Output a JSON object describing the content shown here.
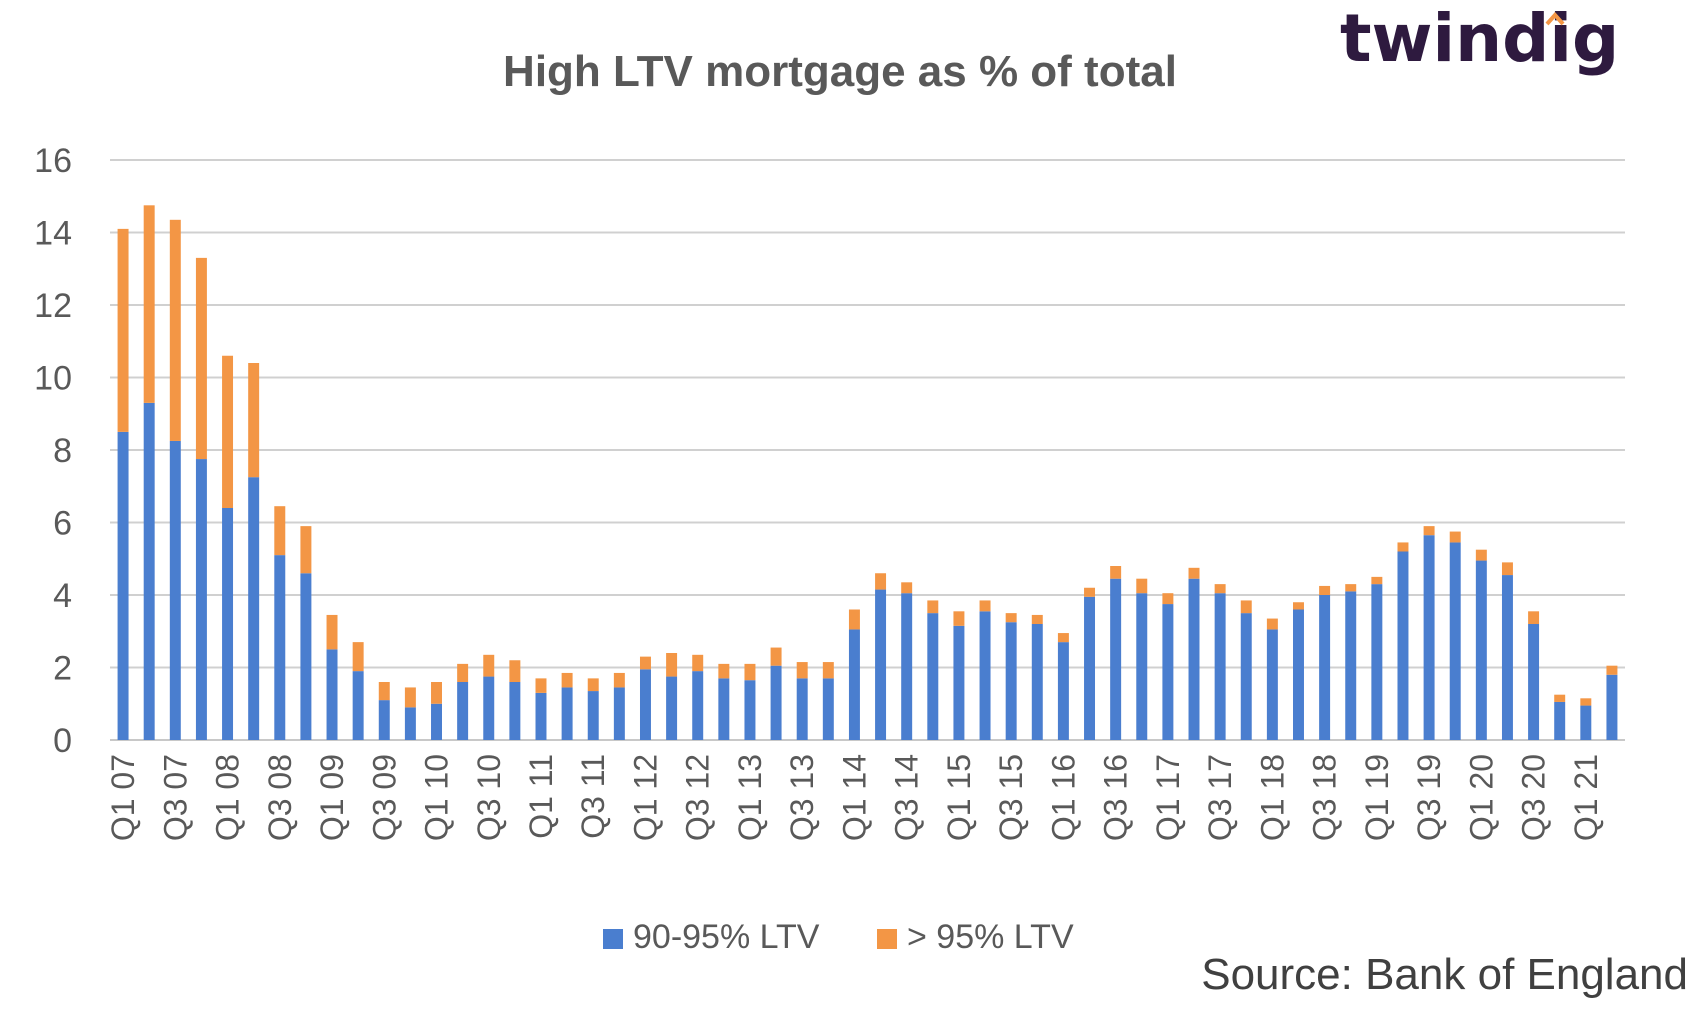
{
  "logo_text": "twindig",
  "source_text": "Source: Bank of England",
  "colors": {
    "series_a": "#4a7ecf",
    "series_b": "#f39645",
    "grid": "#d0d0d0",
    "text": "#595959",
    "logo": "#2e1a3f",
    "logo_accent": "#f39645"
  },
  "chart_data": {
    "type": "bar",
    "stacked": true,
    "title": "High LTV mortgage as % of total",
    "xlabel": "",
    "ylabel": "",
    "ylim": [
      0,
      16
    ],
    "yticks": [
      "0",
      "2",
      "4",
      "6",
      "8",
      "10",
      "12",
      "14",
      "16"
    ],
    "grid": true,
    "legend_position": "bottom",
    "categories": [
      "Q1 07",
      "Q2 07",
      "Q3 07",
      "Q4 07",
      "Q1 08",
      "Q2 08",
      "Q3 08",
      "Q4 08",
      "Q1 09",
      "Q2 09",
      "Q3 09",
      "Q4 09",
      "Q1 10",
      "Q2 10",
      "Q3 10",
      "Q4 10",
      "Q1 11",
      "Q2 11",
      "Q3 11",
      "Q4 11",
      "Q1 12",
      "Q2 12",
      "Q3 12",
      "Q4 12",
      "Q1 13",
      "Q2 13",
      "Q3 13",
      "Q4 13",
      "Q1 14",
      "Q2 14",
      "Q3 14",
      "Q4 14",
      "Q1 15",
      "Q2 15",
      "Q3 15",
      "Q4 15",
      "Q1 16",
      "Q2 16",
      "Q3 16",
      "Q4 16",
      "Q1 17",
      "Q2 17",
      "Q3 17",
      "Q4 17",
      "Q1 18",
      "Q2 18",
      "Q3 18",
      "Q4 18",
      "Q1 19",
      "Q2 19",
      "Q3 19",
      "Q4 19",
      "Q1 20",
      "Q2 20",
      "Q3 20",
      "Q4 20",
      "Q1 21",
      "Q2 21"
    ],
    "visible_tick_labels": [
      "Q1 07",
      "Q3 07",
      "Q1 08",
      "Q3 08",
      "Q1 09",
      "Q3 09",
      "Q1 10",
      "Q3 10",
      "Q1 11",
      "Q3 11",
      "Q1 12",
      "Q3 12",
      "Q1 13",
      "Q3 13",
      "Q1 14",
      "Q3 14",
      "Q1 15",
      "Q3 15",
      "Q1 16",
      "Q3 16",
      "Q1 17",
      "Q3 17",
      "Q1 18",
      "Q3 18",
      "Q1 19",
      "Q3 19",
      "Q1 20",
      "Q3 20",
      "Q1 21"
    ],
    "series": [
      {
        "name": "90-95% LTV",
        "values": [
          8.5,
          9.3,
          8.25,
          7.75,
          6.4,
          7.25,
          5.1,
          4.6,
          2.5,
          1.9,
          1.1,
          0.9,
          1.0,
          1.6,
          1.75,
          1.6,
          1.3,
          1.45,
          1.35,
          1.45,
          1.95,
          1.75,
          1.9,
          1.7,
          1.65,
          2.05,
          1.7,
          1.7,
          3.05,
          4.15,
          4.05,
          3.5,
          3.15,
          3.55,
          3.25,
          3.2,
          2.7,
          3.95,
          4.45,
          4.05,
          3.75,
          4.45,
          4.05,
          3.5,
          3.05,
          3.6,
          4.0,
          4.1,
          4.3,
          5.2,
          5.65,
          5.45,
          4.95,
          4.55,
          3.2,
          1.05,
          0.95,
          1.8
        ]
      },
      {
        "name": "> 95% LTV",
        "values": [
          5.6,
          5.45,
          6.1,
          5.55,
          4.2,
          3.15,
          1.35,
          1.3,
          0.95,
          0.8,
          0.5,
          0.55,
          0.6,
          0.5,
          0.6,
          0.6,
          0.4,
          0.4,
          0.35,
          0.4,
          0.35,
          0.65,
          0.45,
          0.4,
          0.45,
          0.5,
          0.45,
          0.45,
          0.55,
          0.45,
          0.3,
          0.35,
          0.4,
          0.3,
          0.25,
          0.25,
          0.25,
          0.25,
          0.35,
          0.4,
          0.3,
          0.3,
          0.25,
          0.35,
          0.3,
          0.2,
          0.25,
          0.2,
          0.2,
          0.25,
          0.25,
          0.3,
          0.3,
          0.35,
          0.35,
          0.2,
          0.2,
          0.25
        ]
      }
    ]
  }
}
